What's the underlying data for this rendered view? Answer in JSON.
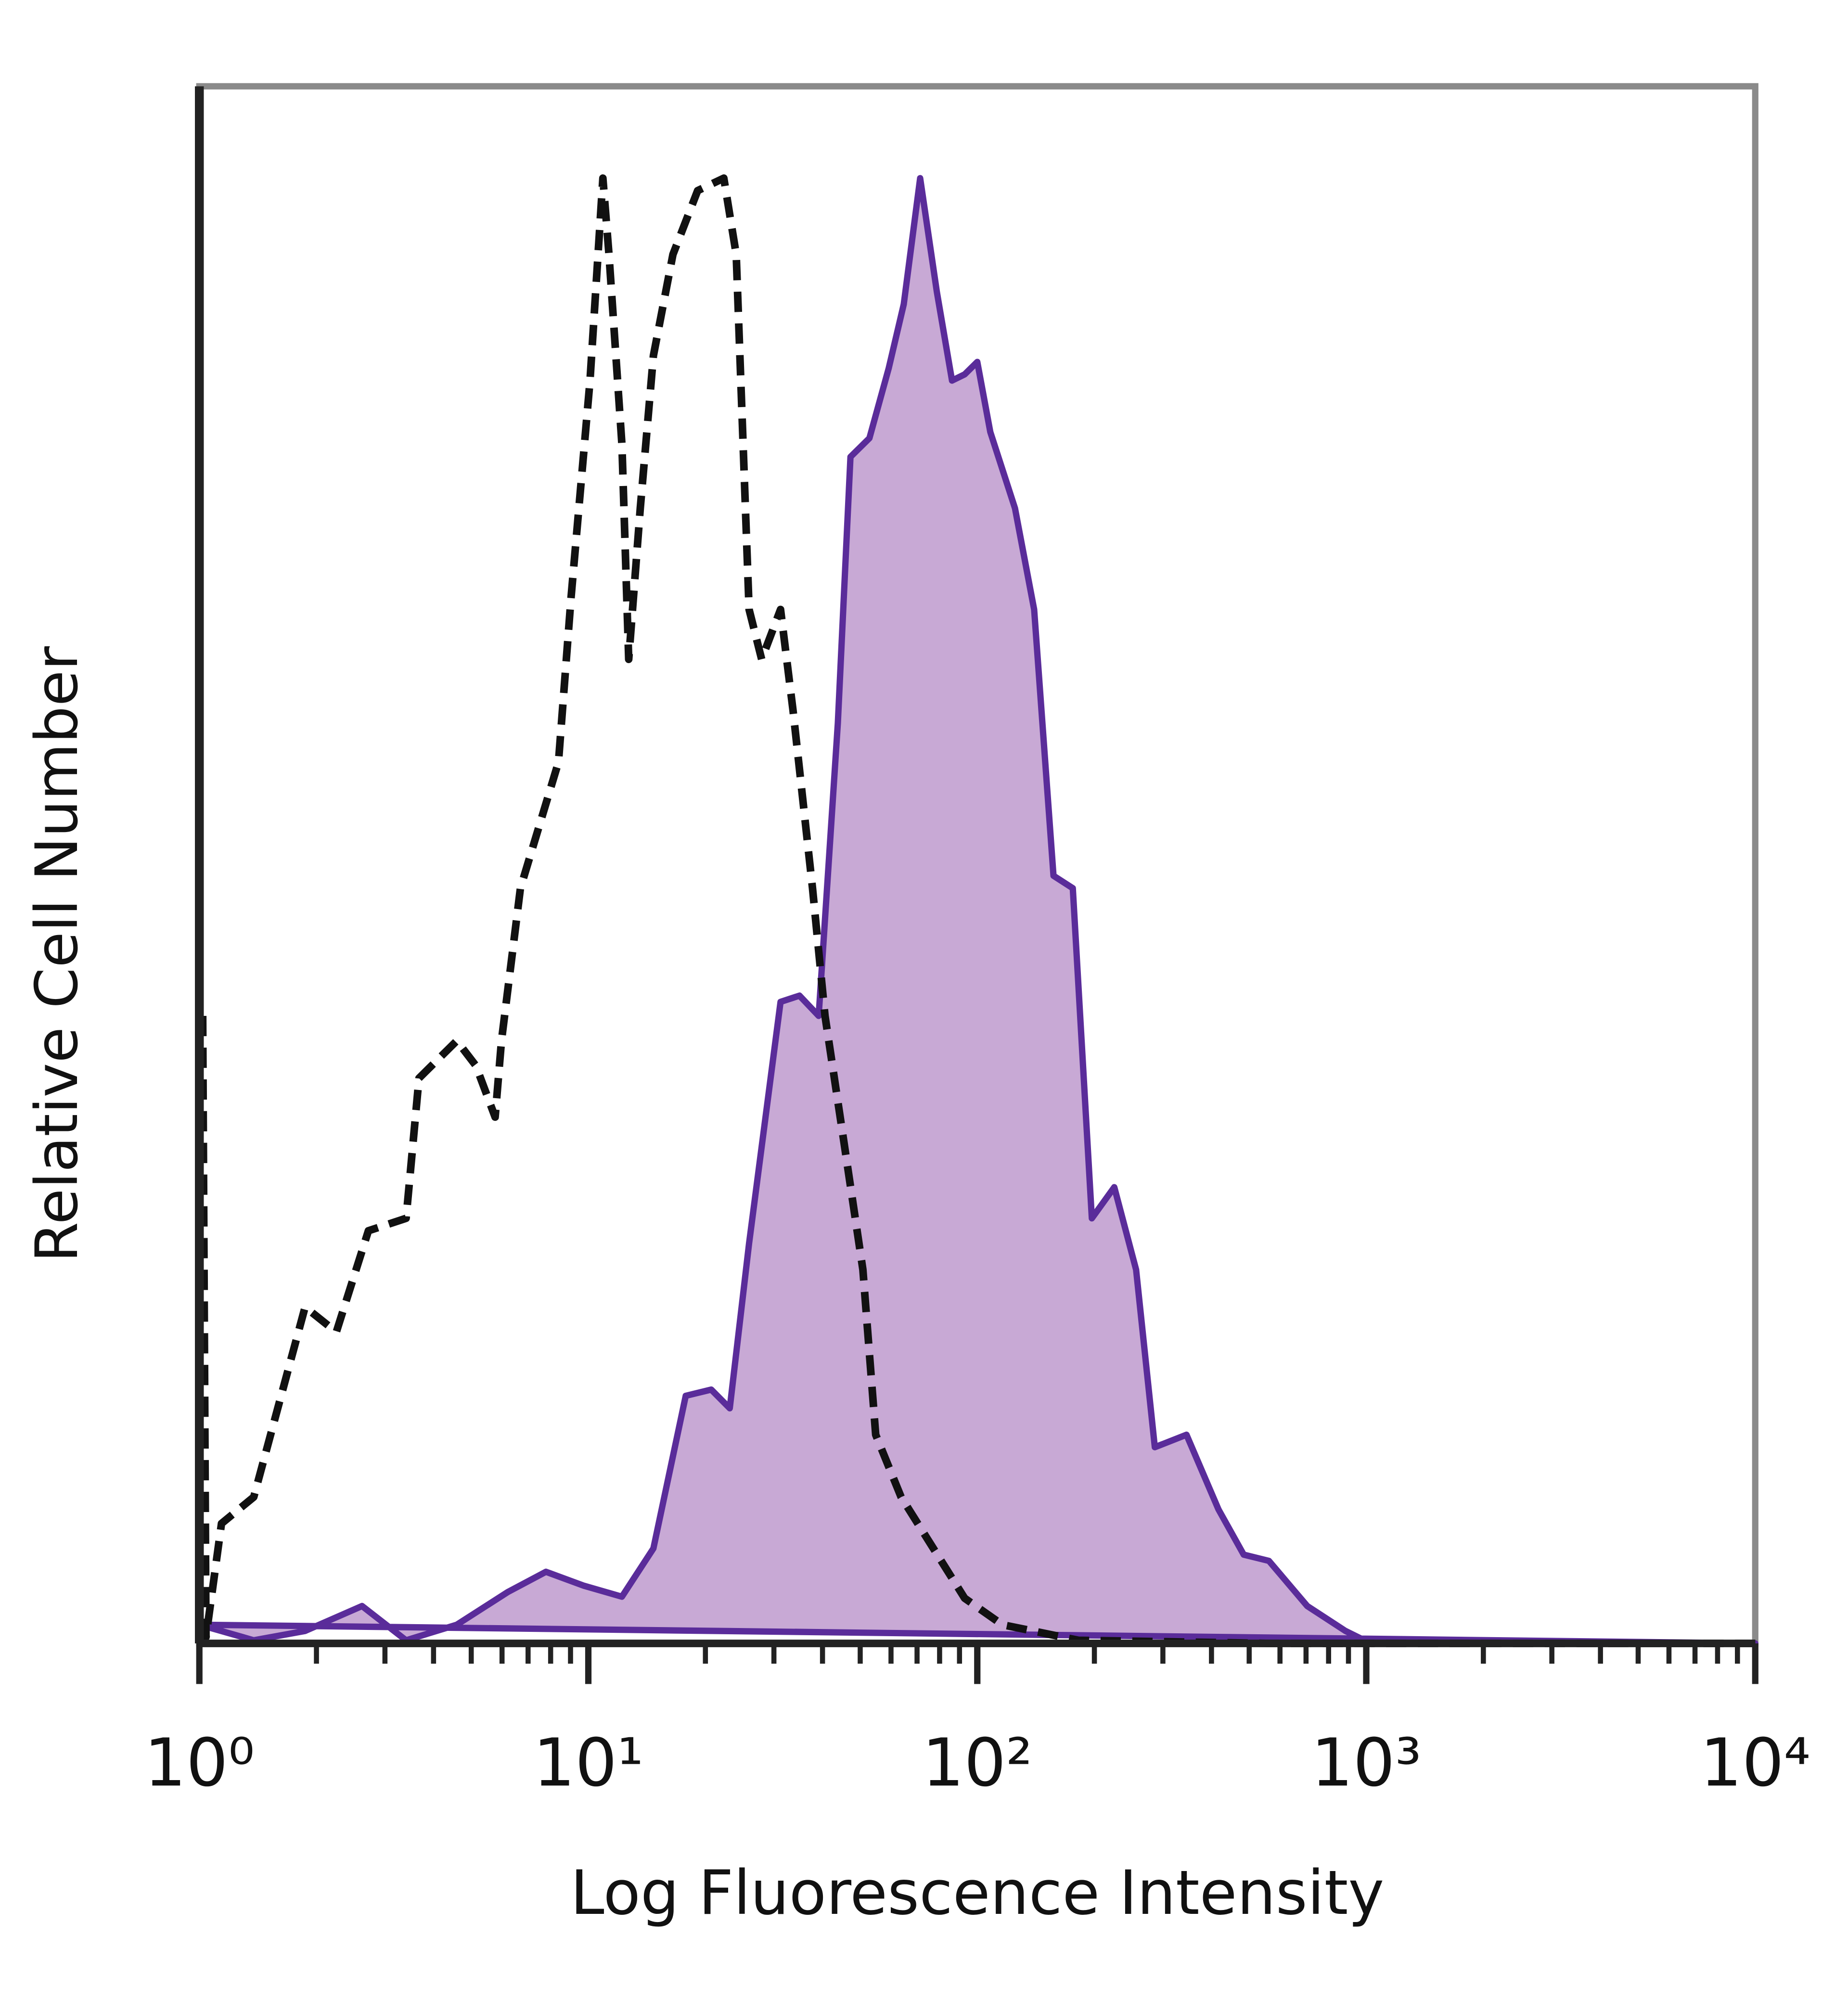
{
  "chart_data": {
    "type": "histogram-overlay",
    "xlabel": "Log Fluorescence Intensity",
    "ylabel": "Relative Cell Number",
    "xscale": "log",
    "xlim": [
      1,
      10000
    ],
    "ylim": [
      0,
      100
    ],
    "xticks": [
      {
        "value": 1,
        "label": "10⁰"
      },
      {
        "value": 10,
        "label": "10¹"
      },
      {
        "value": 100,
        "label": "10²"
      },
      {
        "value": 1000,
        "label": "10³"
      },
      {
        "value": 10000,
        "label": "10⁴"
      }
    ],
    "series": [
      {
        "color": "#5a2c9a",
        "fill": "#c8a9d5",
        "dashed": false,
        "x": [
          1,
          1.38,
          1.87,
          2.62,
          3.4,
          4.59,
          6.21,
          7.78,
          9.75,
          12.2,
          14.7,
          17.8,
          20.7,
          23.1,
          25.9,
          31.2,
          34.9,
          39.1,
          43.8,
          47.2,
          52.8,
          59.2,
          64.7,
          71.3,
          78.7,
          86.1,
          92.8,
          100,
          108,
          125,
          140,
          157,
          176,
          197,
          225,
          256,
          286,
          345,
          417,
          484,
          562,
          705,
          884,
          989,
          1500,
          10000
        ],
        "values": [
          1.2,
          0.2,
          0.8,
          2.4,
          0.2,
          1.2,
          3.3,
          4.6,
          3.7,
          3.0,
          6.1,
          15.9,
          16.3,
          15.1,
          25.7,
          41.2,
          41.6,
          40.3,
          59.1,
          76.2,
          77.4,
          81.9,
          86.0,
          94.1,
          86.8,
          81.1,
          81.5,
          82.3,
          77.8,
          72.9,
          66.4,
          49.3,
          48.5,
          27.3,
          29.3,
          24.0,
          12.6,
          13.4,
          8.6,
          5.7,
          5.3,
          2.4,
          0.8,
          0.2,
          0.2,
          0
        ]
      },
      {
        "color": "#111111",
        "dashed": true,
        "x": [
          1.02,
          1.04,
          1.14,
          1.38,
          1.87,
          2.25,
          2.72,
          3.4,
          3.67,
          4.59,
          5.14,
          5.76,
          5.98,
          6.69,
          8.38,
          9.03,
          10.1,
          10.9,
          11.3,
          12.2,
          12.7,
          13.6,
          14.7,
          16.5,
          19.1,
          22.3,
          24.0,
          25.9,
          27.9,
          31.2,
          33.6,
          37.7,
          40.6,
          45.4,
          50.8,
          54.8,
          63.7,
          92.8,
          116,
          182,
          562,
          10000
        ],
        "values": [
          40.3,
          0.4,
          7.7,
          9.4,
          21.6,
          20.0,
          26.5,
          27.3,
          36.3,
          38.7,
          37.1,
          33.8,
          38.7,
          48.5,
          56.6,
          67.2,
          81.1,
          94.1,
          89.2,
          77.0,
          63.2,
          72.9,
          82.7,
          89.2,
          93.3,
          94.1,
          89.2,
          66.4,
          63.2,
          66.4,
          59.9,
          48.5,
          40.3,
          32.2,
          24.0,
          13.4,
          9.4,
          2.9,
          1.2,
          0.2,
          0,
          0
        ]
      }
    ]
  }
}
